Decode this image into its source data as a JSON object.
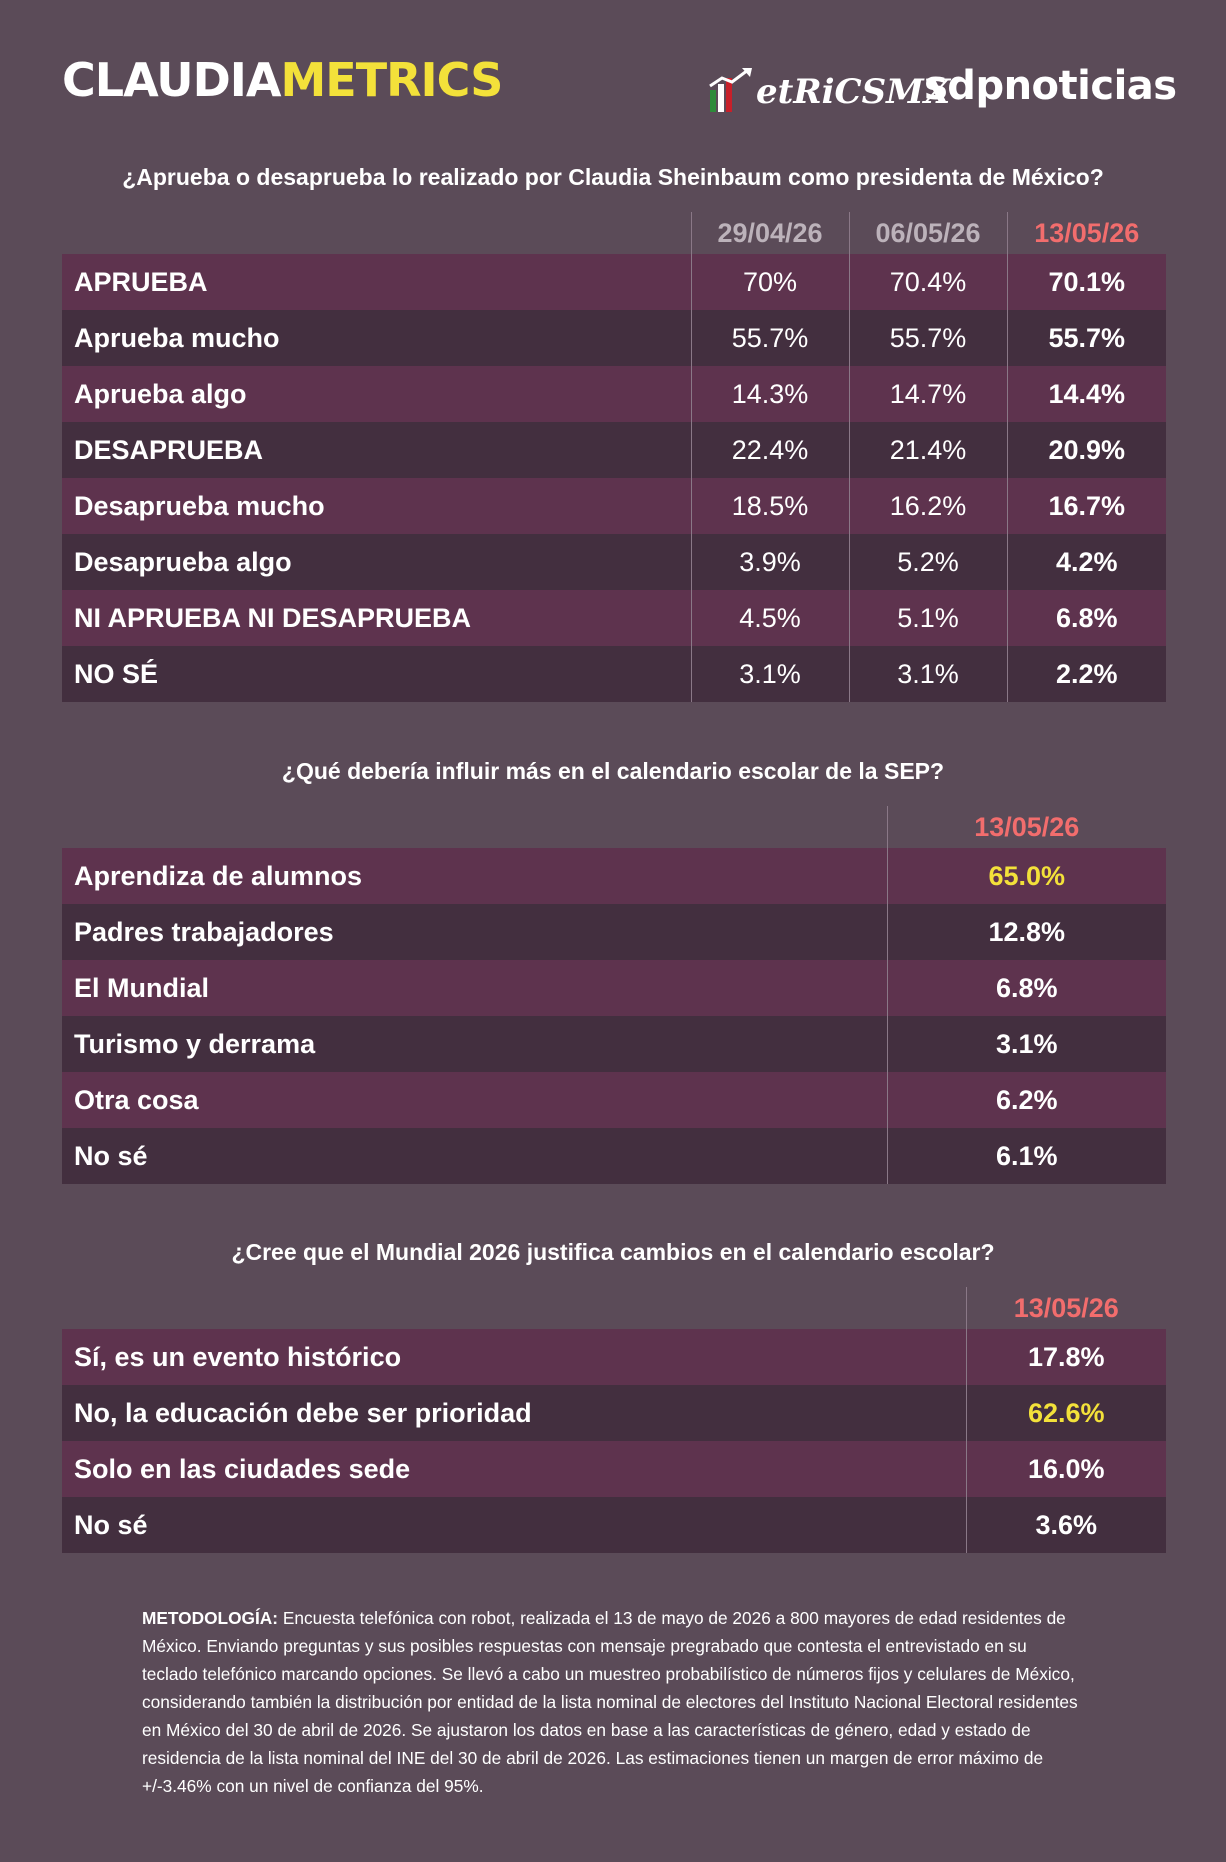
{
  "brand": {
    "part1": "CLAUDIA",
    "part2": "METRICS",
    "partner1": "etRiCSMX",
    "partner2": "sdpnoticias"
  },
  "colors": {
    "background": "#5b4b58",
    "row_odd": "#5e334e",
    "row_even": "#432f3f",
    "highlight": "#f3e13a",
    "date_current": "#f26d6d",
    "date_past": "#bcb2ba"
  },
  "survey1": {
    "question": "¿Aprueba o desaprueba lo realizado por Claudia Sheinbaum como presidenta de México?",
    "dates": [
      "29/04/26",
      "06/05/26",
      "13/05/26"
    ],
    "rows": [
      {
        "label": "APRUEBA",
        "values": [
          "70%",
          "70.4%",
          "70.1%"
        ]
      },
      {
        "label": "Aprueba mucho",
        "values": [
          "55.7%",
          "55.7%",
          "55.7%"
        ]
      },
      {
        "label": "Aprueba algo",
        "values": [
          "14.3%",
          "14.7%",
          "14.4%"
        ]
      },
      {
        "label": "DESAPRUEBA",
        "values": [
          "22.4%",
          "21.4%",
          "20.9%"
        ]
      },
      {
        "label": "Desaprueba mucho",
        "values": [
          "18.5%",
          "16.2%",
          "16.7%"
        ]
      },
      {
        "label": "Desaprueba algo",
        "values": [
          "3.9%",
          "5.2%",
          "4.2%"
        ]
      },
      {
        "label": "NI APRUEBA NI DESAPRUEBA",
        "values": [
          "4.5%",
          "5.1%",
          "6.8%"
        ]
      },
      {
        "label": "NO SÉ",
        "values": [
          "3.1%",
          "3.1%",
          "2.2%"
        ]
      }
    ]
  },
  "survey2": {
    "question": "¿Qué debería influir más en el calendario escolar de la SEP?",
    "date": "13/05/26",
    "rows": [
      {
        "label": "Aprendiza de alumnos",
        "value": "65.0%"
      },
      {
        "label": "Padres trabajadores",
        "value": "12.8%"
      },
      {
        "label": "El Mundial",
        "value": "6.8%"
      },
      {
        "label": "Turismo y derrama",
        "value": "3.1%"
      },
      {
        "label": "Otra cosa",
        "value": "6.2%"
      },
      {
        "label": "No sé",
        "value": "6.1%"
      }
    ]
  },
  "survey3": {
    "question": "¿Cree que el Mundial 2026 justifica cambios en el calendario escolar?",
    "date": "13/05/26",
    "rows": [
      {
        "label": "Sí, es un evento histórico",
        "value": "17.8%"
      },
      {
        "label": "No, la educación debe ser prioridad",
        "value": "62.6%"
      },
      {
        "label": "Solo en las ciudades sede",
        "value": "16.0%"
      },
      {
        "label": "No sé",
        "value": "3.6%"
      }
    ]
  },
  "methodology": {
    "label": "METODOLOGÍA:",
    "text": " Encuesta telefónica con robot, realizada el 13 de mayo de 2026 a 800 mayores de edad residentes de México. Enviando preguntas y sus posibles respuestas con mensaje pregrabado que contesta el entrevistado en su teclado telefónico marcando opciones. Se llevó a cabo un muestreo probabilístico de números fijos y celulares de México, considerando también la distribución por entidad de la lista nominal de electores del Instituto Nacional Electoral residentes en México del 30 de abril de 2026. Se ajustaron los datos en base a las características de género, edad y estado de residencia de la lista nominal del INE del 30 de abril de 2026. Las estimaciones tienen un margen de error máximo de +/-3.46% con un nivel de confianza del 95%."
  }
}
